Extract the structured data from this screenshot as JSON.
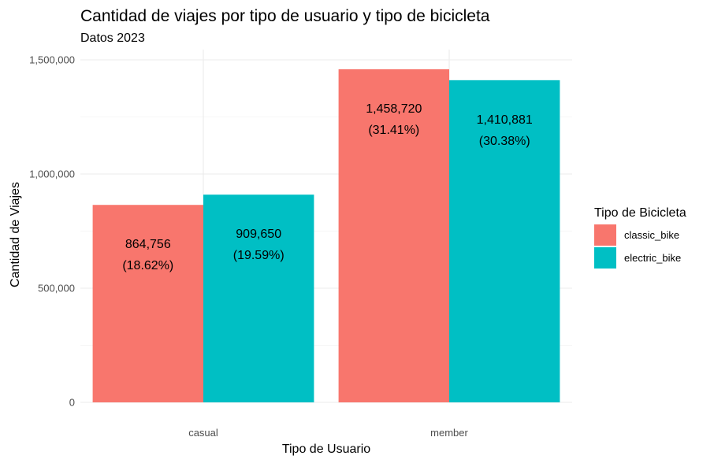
{
  "chart_data": {
    "type": "bar",
    "title": "Cantidad de viajes por tipo de usuario y tipo de bicicleta",
    "subtitle": "Datos 2023",
    "xlabel": "Tipo de Usuario",
    "ylabel": "Cantidad de Viajes",
    "categories": [
      "casual",
      "member"
    ],
    "ylim": [
      0,
      1500000
    ],
    "yticks": [
      0,
      500000,
      1000000,
      1500000
    ],
    "ytick_labels": [
      "0",
      "500,000",
      "1,000,000",
      "1,500,000"
    ],
    "series": [
      {
        "name": "classic_bike",
        "color": "#F8766D",
        "values": [
          864756,
          1458720
        ],
        "labels": [
          [
            "864,756",
            "(18.62%)"
          ],
          [
            "1,458,720",
            "(31.41%)"
          ]
        ]
      },
      {
        "name": "electric_bike",
        "color": "#00BFC4",
        "values": [
          909650,
          1410881
        ],
        "labels": [
          [
            "909,650",
            "(19.59%)"
          ],
          [
            "1,410,881",
            "(30.38%)"
          ]
        ]
      }
    ],
    "legend": {
      "title": "Tipo de Bicicleta",
      "position": "right"
    },
    "grid": true
  }
}
